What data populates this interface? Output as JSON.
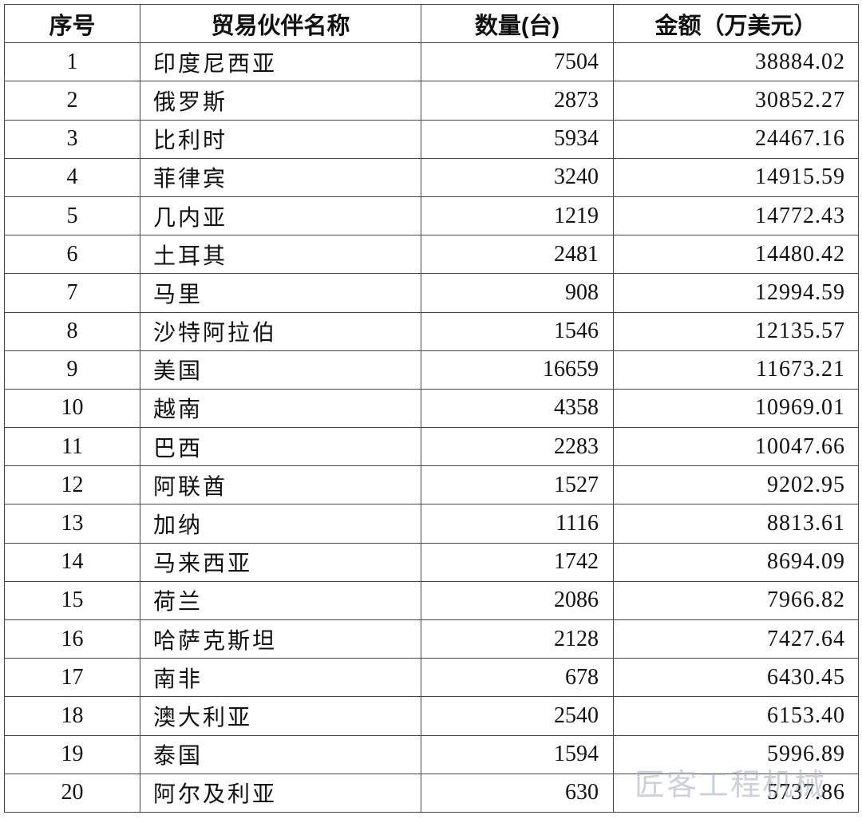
{
  "table": {
    "header": [
      "序号",
      "贸易伙伴名称",
      "数量(台)",
      "金额（万美元）"
    ],
    "rows": [
      [
        "1",
        "印度尼西亚",
        "7504",
        "38884.02"
      ],
      [
        "2",
        "俄罗斯",
        "2873",
        "30852.27"
      ],
      [
        "3",
        "比利时",
        "5934",
        "24467.16"
      ],
      [
        "4",
        "菲律宾",
        "3240",
        "14915.59"
      ],
      [
        "5",
        "几内亚",
        "1219",
        "14772.43"
      ],
      [
        "6",
        "土耳其",
        "2481",
        "14480.42"
      ],
      [
        "7",
        "马里",
        "908",
        "12994.59"
      ],
      [
        "8",
        "沙特阿拉伯",
        "1546",
        "12135.57"
      ],
      [
        "9",
        "美国",
        "16659",
        "11673.21"
      ],
      [
        "10",
        "越南",
        "4358",
        "10969.01"
      ],
      [
        "11",
        "巴西",
        "2283",
        "10047.66"
      ],
      [
        "12",
        "阿联酋",
        "1527",
        "9202.95"
      ],
      [
        "13",
        "加纳",
        "1116",
        "8813.61"
      ],
      [
        "14",
        "马来西亚",
        "1742",
        "8694.09"
      ],
      [
        "15",
        "荷兰",
        "2086",
        "7966.82"
      ],
      [
        "16",
        "哈萨克斯坦",
        "2128",
        "7427.64"
      ],
      [
        "17",
        "南非",
        "678",
        "6430.45"
      ],
      [
        "18",
        "澳大利亚",
        "2540",
        "6153.40"
      ],
      [
        "19",
        "泰国",
        "1594",
        "5996.89"
      ],
      [
        "20",
        "阿尔及利亚",
        "630",
        "5737.86"
      ]
    ]
  },
  "watermark": "匠客工程机械"
}
